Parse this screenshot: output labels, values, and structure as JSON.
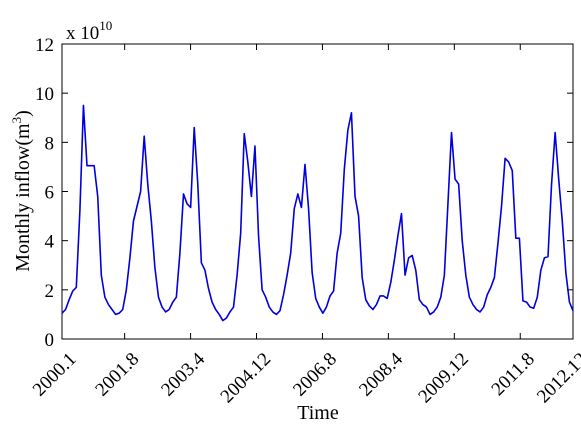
{
  "chart_data": {
    "type": "line",
    "xlabel": "Time",
    "ylabel_prefix": "Monthly inflow(m",
    "ylabel_exp": "3",
    "ylabel_suffix": ")",
    "y_multiplier_prefix": "x 10",
    "y_multiplier_exp": "10",
    "ylim": [
      0,
      12
    ],
    "yticks": [
      0,
      2,
      4,
      6,
      8,
      10,
      12
    ],
    "xlim": [
      0,
      155
    ],
    "xtick_labels": [
      "2000.1",
      "2001.8",
      "2003.4",
      "2004.12",
      "2006.8",
      "2008.4",
      "2009.12",
      "2011.8",
      "2012.12"
    ],
    "xtick_positions": [
      0,
      19,
      39,
      59,
      79,
      99,
      119,
      139,
      155
    ],
    "grid": false,
    "line_color": "#0000dd",
    "series": [
      {
        "values": [
          1.05,
          1.2,
          1.6,
          1.95,
          2.1,
          5.2,
          9.5,
          7.05,
          7.05,
          7.05,
          5.8,
          2.6,
          1.7,
          1.4,
          1.2,
          1.0,
          1.05,
          1.2,
          2.0,
          3.3,
          4.8,
          5.4,
          6.0,
          8.25,
          6.3,
          4.8,
          2.9,
          1.7,
          1.3,
          1.1,
          1.2,
          1.5,
          1.7,
          3.5,
          5.9,
          5.5,
          5.35,
          8.6,
          6.3,
          3.1,
          2.8,
          2.05,
          1.5,
          1.2,
          1.0,
          0.75,
          0.85,
          1.1,
          1.3,
          2.6,
          4.3,
          8.35,
          7.2,
          5.8,
          7.85,
          4.2,
          2.0,
          1.7,
          1.3,
          1.1,
          1.0,
          1.15,
          1.8,
          2.6,
          3.5,
          5.3,
          5.9,
          5.35,
          7.1,
          5.3,
          2.7,
          1.65,
          1.3,
          1.05,
          1.3,
          1.75,
          1.95,
          3.5,
          4.3,
          6.9,
          8.5,
          9.2,
          5.8,
          5.0,
          2.5,
          1.6,
          1.35,
          1.2,
          1.4,
          1.75,
          1.75,
          1.65,
          2.3,
          3.2,
          4.2,
          5.1,
          2.6,
          3.3,
          3.4,
          2.8,
          1.6,
          1.4,
          1.3,
          1.0,
          1.1,
          1.3,
          1.7,
          2.6,
          5.5,
          8.4,
          6.5,
          6.3,
          4.0,
          2.6,
          1.7,
          1.4,
          1.2,
          1.1,
          1.3,
          1.8,
          2.1,
          2.5,
          3.9,
          5.4,
          7.35,
          7.2,
          6.85,
          4.1,
          4.1,
          1.55,
          1.5,
          1.3,
          1.25,
          1.7,
          2.8,
          3.3,
          3.35,
          6.3,
          8.4,
          6.5,
          4.8,
          2.7,
          1.5,
          1.15
        ]
      }
    ]
  }
}
